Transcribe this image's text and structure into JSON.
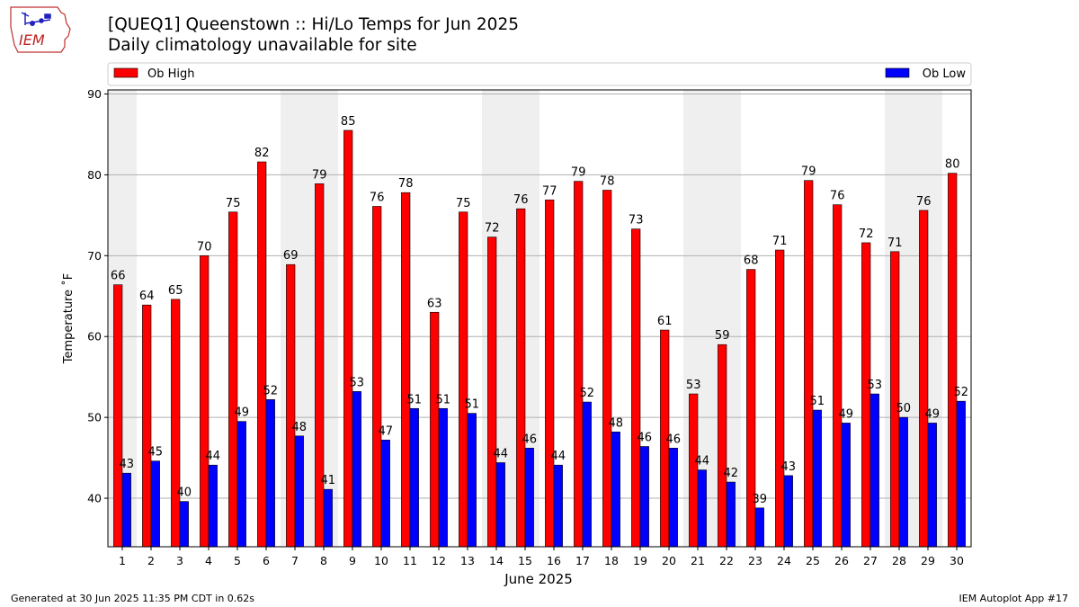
{
  "header": {
    "title": "[QUEQ1] Queenstown :: Hi/Lo Temps for Jun 2025",
    "subtitle": "Daily climatology unavailable for site"
  },
  "logo": {
    "text": "IEM",
    "icon": "iem-iowa-logo"
  },
  "footer": {
    "generated": "Generated at 30 Jun 2025 11:35 PM CDT in 0.62s",
    "app": "IEM Autoplot App #17"
  },
  "colors": {
    "high": "#ff0000",
    "low": "#0000ff",
    "weekend_shade": "#efefef",
    "grid": "#b0b0b0"
  },
  "chart_data": {
    "type": "bar",
    "xlabel": "June 2025",
    "ylabel": "Temperature ˚F",
    "ylim": [
      34,
      90.5
    ],
    "yticks": [
      40,
      50,
      60,
      70,
      80,
      90
    ],
    "grid": true,
    "legend_placement": "top",
    "categories": [
      "1",
      "2",
      "3",
      "4",
      "5",
      "6",
      "7",
      "8",
      "9",
      "10",
      "11",
      "12",
      "13",
      "14",
      "15",
      "16",
      "17",
      "18",
      "19",
      "20",
      "21",
      "22",
      "23",
      "24",
      "25",
      "26",
      "27",
      "28",
      "29",
      "30"
    ],
    "weekend_days": [
      1,
      7,
      8,
      14,
      15,
      21,
      22,
      28,
      29
    ],
    "series": [
      {
        "name": "Ob High",
        "color": "#ff0000",
        "values": [
          66.4,
          63.9,
          64.6,
          70.0,
          75.4,
          81.6,
          68.9,
          78.9,
          85.5,
          76.1,
          77.8,
          63.0,
          75.4,
          72.3,
          75.8,
          76.9,
          79.2,
          78.1,
          73.3,
          60.8,
          52.9,
          59.0,
          68.3,
          70.7,
          79.3,
          76.3,
          71.6,
          70.5,
          75.6,
          80.2
        ],
        "labels": [
          "66",
          "64",
          "65",
          "70",
          "75",
          "82",
          "69",
          "79",
          "85",
          "76",
          "78",
          "63",
          "75",
          "72",
          "76",
          "77",
          "79",
          "78",
          "73",
          "61",
          "53",
          "59",
          "68",
          "71",
          "79",
          "76",
          "72",
          "71",
          "76",
          "80"
        ]
      },
      {
        "name": "Ob Low",
        "color": "#0000ff",
        "values": [
          43.1,
          44.6,
          39.6,
          44.1,
          49.5,
          52.2,
          47.7,
          41.1,
          53.2,
          47.2,
          51.1,
          51.1,
          50.5,
          44.4,
          46.2,
          44.1,
          51.9,
          48.2,
          46.4,
          46.2,
          43.5,
          42.0,
          38.8,
          42.8,
          50.9,
          49.3,
          52.9,
          50.0,
          49.3,
          52.0
        ],
        "labels": [
          "43",
          "45",
          "40",
          "44",
          "49",
          "52",
          "48",
          "41",
          "53",
          "47",
          "51",
          "51",
          "51",
          "44",
          "46",
          "44",
          "52",
          "48",
          "46",
          "46",
          "44",
          "42",
          "39",
          "43",
          "51",
          "49",
          "53",
          "50",
          "49",
          "52"
        ]
      }
    ]
  }
}
